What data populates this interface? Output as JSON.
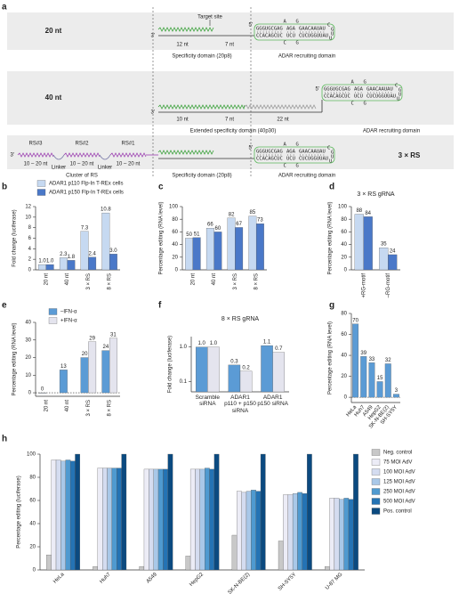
{
  "diagram": {
    "panel": "a",
    "rows": [
      {
        "label": "20 nt",
        "target": "Target site",
        "segments": [
          "12 nt",
          "7 nt"
        ],
        "domains": [
          "Specificity domain (20p8)",
          "ADAR recruiting domain"
        ]
      },
      {
        "label": "40 nt",
        "segments": [
          "10 nt",
          "7 nt",
          "22 nt"
        ],
        "domains": [
          "Extended specificity domain (40p30)",
          "ADAR recruiting domain"
        ]
      },
      {
        "label": "3 × RS",
        "rs": [
          "RS#3",
          "RS#2",
          "RS#1"
        ],
        "rs_length": [
          "10 – 20 nt",
          "10 – 20 nt",
          "10 – 20 nt"
        ],
        "linkers": [
          "Linker",
          "Linker"
        ],
        "domains": [
          "Cluster of RS",
          "Specificity domain (20p8)",
          "ADAR recruiting domain"
        ]
      }
    ],
    "hairpin": {
      "top": [
        "GGGUGCGAG",
        "AGA",
        "GAACAAUAU"
      ],
      "bottom": [
        "CCACAGCUC",
        "UCU",
        "CUCUGGUUAU"
      ],
      "bulge_top": [
        "A",
        "G"
      ],
      "bulge_bottom": [
        "C",
        "G"
      ],
      "loop": [
        "C",
        "G",
        "U",
        "U"
      ]
    },
    "ends": [
      "3'",
      "5'"
    ]
  },
  "chart_data": [
    {
      "type": "bar",
      "panel": "b",
      "ylabel": "Fold change (luciferase)",
      "categories": [
        "20 nt",
        "40 nt",
        "3 × RS",
        "8 × RS"
      ],
      "series": [
        {
          "name": "ADAR1 p110 Flp-In T-REx cells",
          "color": "#c6d9f1",
          "values": [
            1,
            2.3,
            7.3,
            10.8
          ],
          "value_labels": [
            "1.0",
            "2.3",
            "7.3",
            "10.8"
          ]
        },
        {
          "name": "ADAR1 p150 Flp-In T-REx cells",
          "color": "#4a78c8",
          "values": [
            1,
            1.8,
            2.4,
            3
          ],
          "value_labels": [
            "1.0",
            "1.8",
            "2.4",
            "3.0"
          ]
        }
      ],
      "ylim": [
        0,
        12
      ],
      "yticks": [
        0,
        2,
        4,
        6,
        8,
        10,
        12
      ]
    },
    {
      "type": "bar",
      "panel": "c",
      "ylabel": "Percentage editing (RNA level)",
      "categories": [
        "20 nt",
        "40 nt",
        "3 × RS",
        "8 × RS"
      ],
      "series": [
        {
          "color": "#c6d9f1",
          "values": [
            50,
            66,
            82,
            85
          ]
        },
        {
          "color": "#4a78c8",
          "values": [
            51,
            60,
            67,
            73
          ]
        }
      ],
      "ylim": [
        0,
        100
      ],
      "yticks": [
        0,
        20,
        40,
        60,
        80,
        100
      ]
    },
    {
      "type": "bar",
      "panel": "d",
      "title": "3 × RS gRNA",
      "ylabel": "Percentage editing (RNA level)",
      "categories": [
        "+RG-motif",
        "–RG-motif"
      ],
      "series": [
        {
          "color": "#c6d9f1",
          "values": [
            88,
            35
          ]
        },
        {
          "color": "#4a78c8",
          "values": [
            84,
            24
          ]
        }
      ],
      "ylim": [
        0,
        100
      ],
      "yticks": [
        0,
        20,
        40,
        60,
        80,
        100
      ]
    },
    {
      "type": "bar",
      "panel": "e",
      "ylabel": "Percentage editing (RNA level)",
      "categories": [
        "20 nt",
        "40 nt",
        "3 × RS",
        "8 × RS"
      ],
      "series": [
        {
          "name": "–IFN-α",
          "color": "#5b9bd5",
          "values": [
            0,
            13,
            20,
            24
          ]
        },
        {
          "name": "+IFN-α",
          "color": "#e4e4ee",
          "values": [
            null,
            null,
            29,
            31
          ]
        }
      ],
      "ylim": [
        -2,
        40
      ],
      "yticks": [
        0,
        10,
        20,
        30,
        40
      ]
    },
    {
      "type": "bar",
      "panel": "f",
      "title": "8 × RS gRNA",
      "ylabel": "Fold change (luciferase)",
      "log_scale": true,
      "categories": [
        "Scramble siRNA",
        "ADAR1 p110 + p150 siRNA",
        "ADAR1 p150 siRNA"
      ],
      "series": [
        {
          "color": "#5b9bd5",
          "values": [
            1,
            0.3,
            1.1
          ],
          "value_labels": [
            "1.0",
            "0.3",
            "1.1"
          ]
        },
        {
          "color": "#e4e4ee",
          "values": [
            1,
            0.2,
            0.7
          ],
          "value_labels": [
            "1.0",
            "0.2",
            "0.7"
          ]
        }
      ],
      "ylim": [
        0.05,
        2
      ],
      "yticks": [
        0.1,
        {
          "value": 1,
          "label": "1.0"
        }
      ]
    },
    {
      "type": "bar",
      "panel": "g",
      "ylabel": "Percentage editing (RNA level)",
      "categories": [
        "HeLa",
        "Huh7",
        "A549",
        "HepG2",
        "SK-N-BE(2)",
        "SH-SY5Y"
      ],
      "values": [
        70,
        39,
        33,
        15,
        32,
        3
      ],
      "color": "#5b9bd5",
      "ylim": [
        -5,
        80
      ],
      "yticks": [
        0,
        20,
        40,
        60,
        80
      ]
    },
    {
      "type": "bar",
      "panel": "h",
      "ylabel": "Percentage editing (luciferase)",
      "categories": [
        "HeLa",
        "Huh7",
        "A549",
        "HepG2",
        "SK-N-BE(2)",
        "SH-SY5Y",
        "U-87 MG"
      ],
      "series": [
        {
          "name": "Neg. control",
          "color": "#c8c8c8",
          "values": [
            13,
            3,
            3,
            12,
            30,
            25,
            3
          ]
        },
        {
          "name": "75 MOI AdV",
          "color": "#ececf6",
          "values": [
            95,
            88,
            87,
            87,
            68,
            65,
            62
          ]
        },
        {
          "name": "100 MOI AdV",
          "color": "#d4dcf0",
          "values": [
            95,
            88,
            87,
            87,
            67,
            65,
            62
          ]
        },
        {
          "name": "125 MOI AdV",
          "color": "#a9c8e8",
          "values": [
            94,
            88,
            87,
            87,
            68,
            66,
            61
          ]
        },
        {
          "name": "250 MOI AdV",
          "color": "#4f9ad0",
          "values": [
            95,
            88,
            87,
            88,
            69,
            67,
            62
          ]
        },
        {
          "name": "500 MOI AdV",
          "color": "#2473b4",
          "values": [
            94,
            88,
            87,
            87,
            68,
            66,
            61
          ]
        },
        {
          "name": "Pos. control",
          "color": "#0b4a80",
          "values": [
            100,
            100,
            100,
            100,
            100,
            100,
            100
          ]
        }
      ],
      "ylim": [
        0,
        100
      ],
      "yticks": [
        0,
        20,
        40,
        60,
        80,
        100
      ]
    }
  ]
}
